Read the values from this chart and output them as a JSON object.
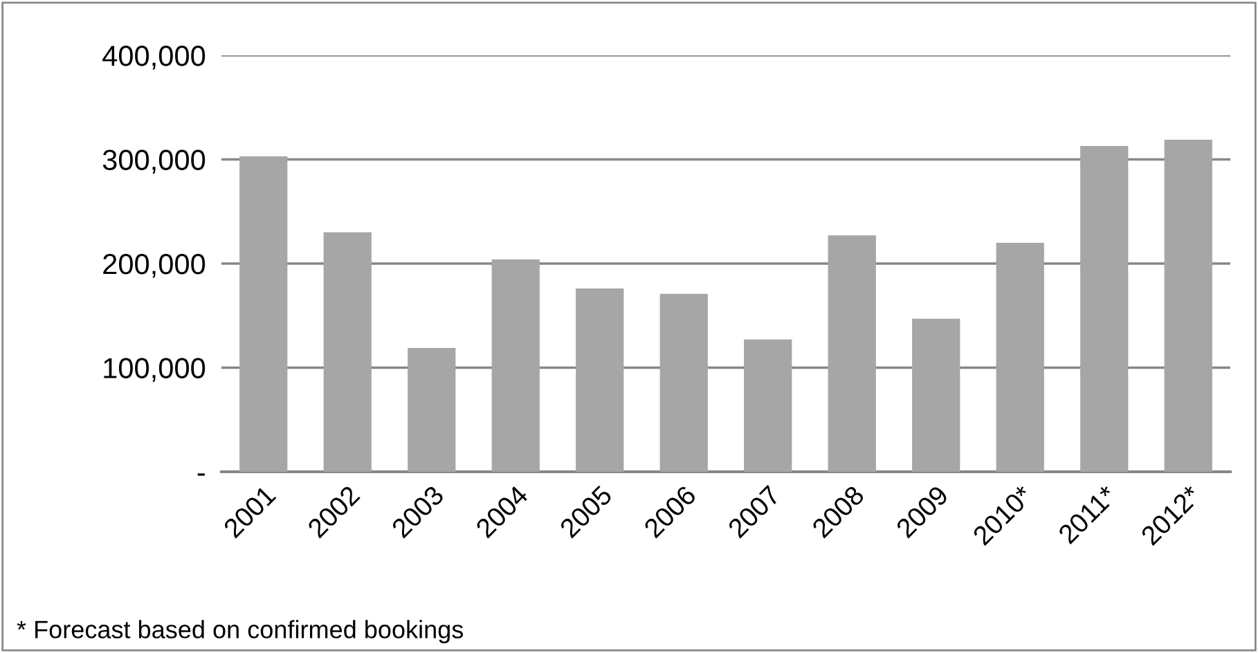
{
  "chart_data": {
    "type": "bar",
    "categories": [
      "2001",
      "2002",
      "2003",
      "2004",
      "2005",
      "2006",
      "2007",
      "2008",
      "2009",
      "2010*",
      "2011*",
      "2012*"
    ],
    "values": [
      303000,
      230000,
      119000,
      204000,
      176000,
      171000,
      127000,
      227000,
      147000,
      220000,
      313000,
      319000
    ],
    "color": "#a6a6a6",
    "ylim": [
      0,
      400000
    ],
    "yticks": [
      {
        "value": 0,
        "label": "-"
      },
      {
        "value": 100000,
        "label": "100,000"
      },
      {
        "value": 200000,
        "label": "200,000"
      },
      {
        "value": 300000,
        "label": "300,000"
      },
      {
        "value": 400000,
        "label": "400,000"
      }
    ],
    "grid": "y",
    "annotations": [
      "* Forecast based on confirmed bookings"
    ]
  }
}
